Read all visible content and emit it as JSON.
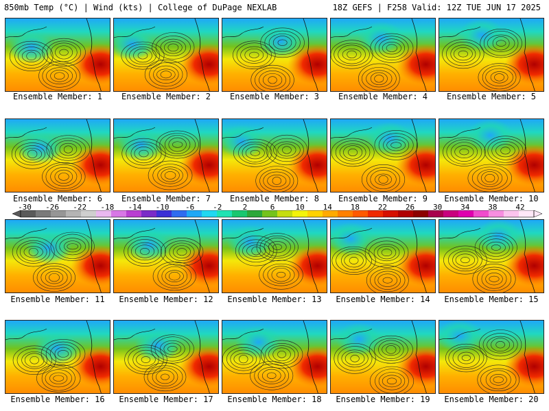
{
  "header": {
    "left": "850mb Temp (°C) | Wind (kts) | College of DuPage NEXLAB",
    "right": "18Z GEFS | F258 Valid: 12Z TUE JUN 17 2025"
  },
  "members": [
    {
      "label": "Ensemble Member: 1"
    },
    {
      "label": "Ensemble Member: 2"
    },
    {
      "label": "Ensemble Member: 3"
    },
    {
      "label": "Ensemble Member: 4"
    },
    {
      "label": "Ensemble Member: 5"
    },
    {
      "label": "Ensemble Member: 6"
    },
    {
      "label": "Ensemble Member: 7"
    },
    {
      "label": "Ensemble Member: 8"
    },
    {
      "label": "Ensemble Member: 9"
    },
    {
      "label": "Ensemble Member: 10"
    },
    {
      "label": "Ensemble Member: 11"
    },
    {
      "label": "Ensemble Member: 12"
    },
    {
      "label": "Ensemble Member: 13"
    },
    {
      "label": "Ensemble Member: 14"
    },
    {
      "label": "Ensemble Member: 15"
    },
    {
      "label": "Ensemble Member: 16"
    },
    {
      "label": "Ensemble Member: 17"
    },
    {
      "label": "Ensemble Member: 18"
    },
    {
      "label": "Ensemble Member: 19"
    },
    {
      "label": "Ensemble Member: 20"
    }
  ],
  "colorbar": {
    "ticks": [
      "-30",
      "-26",
      "-22",
      "-18",
      "-14",
      "-10",
      "-6",
      "-2",
      "2",
      "6",
      "10",
      "14",
      "18",
      "22",
      "26",
      "30",
      "34",
      "38",
      "42"
    ],
    "colors": [
      "#5a5a5a",
      "#7a7a7a",
      "#969696",
      "#b4b4b4",
      "#cfcfcf",
      "#e9b8f0",
      "#d877e6",
      "#b93fd2",
      "#7b2bc8",
      "#3b2fd6",
      "#2f6cf0",
      "#1fa8f7",
      "#20d8f2",
      "#1fe3b3",
      "#18c870",
      "#2ca83a",
      "#74c31c",
      "#c5dd10",
      "#f4f40a",
      "#ffd200",
      "#ffaa00",
      "#ff8000",
      "#ff5a00",
      "#f02a00",
      "#d61000",
      "#b00000",
      "#8c0000",
      "#a8004c",
      "#c9007e",
      "#e000ae",
      "#f04ccc",
      "#f78ee0",
      "#fcc4ee",
      "#ffe8f8"
    ]
  }
}
